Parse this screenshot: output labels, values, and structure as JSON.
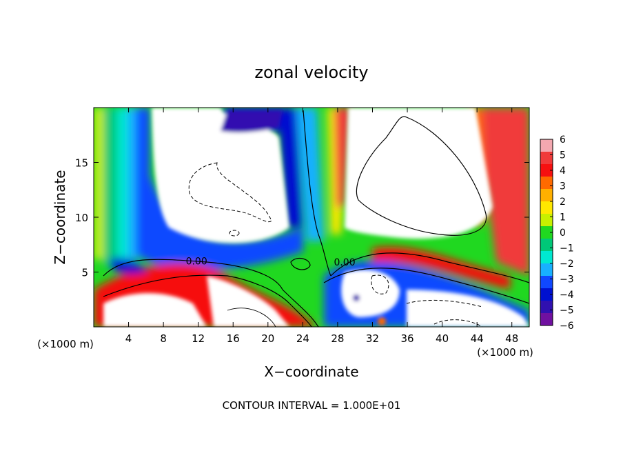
{
  "chart_data": {
    "type": "heatmap",
    "title": "zonal velocity",
    "xlabel": "X−coordinate",
    "ylabel": "Z−coordinate",
    "x_unit_left": "(×1000 m)",
    "x_unit_right": "(×1000 m)",
    "xlim": [
      0,
      50
    ],
    "ylim": [
      0,
      20
    ],
    "x_ticks": [
      4,
      8,
      12,
      16,
      20,
      24,
      28,
      32,
      36,
      40,
      44,
      48
    ],
    "y_ticks": [
      5,
      10,
      15
    ],
    "colorbar": {
      "tick_values": [
        6,
        5,
        4,
        3,
        2,
        1,
        0,
        -1,
        -2,
        -3,
        -4,
        -5,
        -6
      ],
      "tick_labels": [
        "6",
        "5",
        "4",
        "3",
        "2",
        "1",
        "0",
        "−1",
        "−2",
        "−3",
        "−4",
        "−5",
        "−6"
      ],
      "range": [
        -6,
        6
      ],
      "colors": [
        "#f4a8b0",
        "#f03a3a",
        "#f61010",
        "#ff6a00",
        "#ffb000",
        "#ffe800",
        "#c8f000",
        "#20d820",
        "#00c878",
        "#00e8d0",
        "#18b0ff",
        "#1048ff",
        "#0010d0",
        "#3010b0",
        "#7010a0"
      ]
    },
    "contour_labels": [
      {
        "text": "0.00",
        "x": 11.8,
        "z": 6.0
      },
      {
        "text": "0.00",
        "x": 28.8,
        "z": 5.9
      }
    ],
    "footer": "CONTOUR INTERVAL = 1.000E+01",
    "grid": false,
    "legend": "colorbar-right"
  }
}
